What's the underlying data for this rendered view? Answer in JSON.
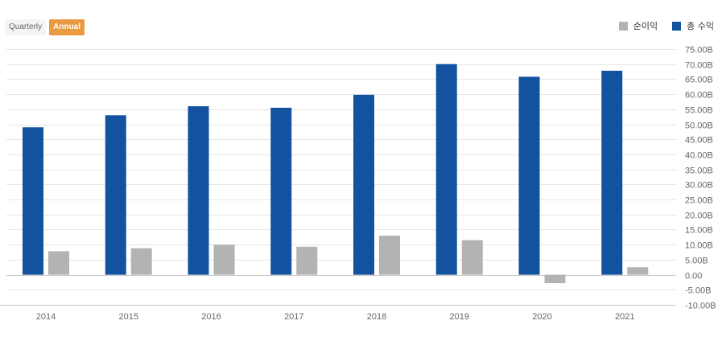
{
  "controls": {
    "quarterly_label": "Quarterly",
    "annual_label": "Annual"
  },
  "colors": {
    "revenue": "#12529f",
    "net_income": "#b3b3b3",
    "grid": "#e6e6e6",
    "zero_line": "#c8c8c8",
    "axis": "#cccccc"
  },
  "chart_data": {
    "type": "bar",
    "categories": [
      "2014",
      "2015",
      "2016",
      "2017",
      "2018",
      "2019",
      "2020",
      "2021"
    ],
    "series": [
      {
        "name": "총 수익",
        "values": [
          49.0,
          53.0,
          56.0,
          55.5,
          59.8,
          70.0,
          65.8,
          67.8
        ]
      },
      {
        "name": "순이익",
        "values": [
          7.8,
          8.8,
          10.0,
          9.3,
          13.0,
          11.5,
          -2.8,
          2.5
        ]
      }
    ],
    "y_ticks": [
      "75.00B",
      "70.00B",
      "65.00B",
      "60.00B",
      "55.00B",
      "50.00B",
      "45.00B",
      "40.00B",
      "35.00B",
      "30.00B",
      "25.00B",
      "20.00B",
      "15.00B",
      "10.00B",
      "5.00B",
      "0.00",
      "-5.00B",
      "-10.00B"
    ],
    "ylim": [
      -10,
      75
    ],
    "unit": "B",
    "grid": true,
    "legend_position": "top-right",
    "legend_order": [
      "순이익",
      "총 수익"
    ]
  }
}
